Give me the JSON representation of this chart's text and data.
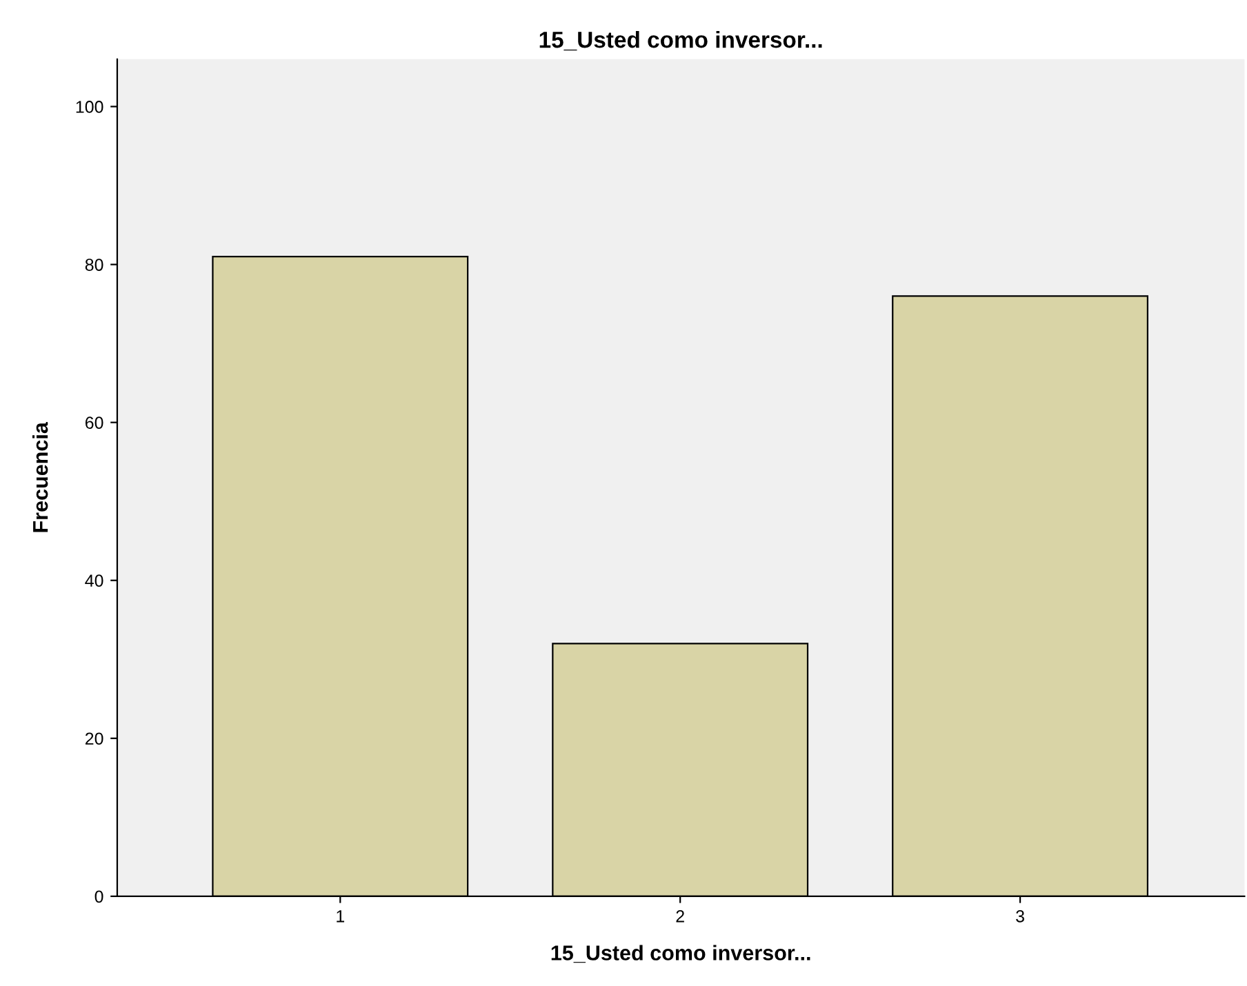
{
  "chart_data": {
    "type": "bar",
    "title": "15_Usted como inversor...",
    "xlabel": "15_Usted como inversor...",
    "ylabel": "Frecuencia",
    "categories": [
      "1",
      "2",
      "3"
    ],
    "values": [
      81,
      32,
      76
    ],
    "color": "#d9d4a6",
    "ylim": [
      0,
      106
    ],
    "yticks": [
      0,
      20,
      40,
      60,
      80,
      100
    ],
    "grid": false,
    "legend": false
  }
}
